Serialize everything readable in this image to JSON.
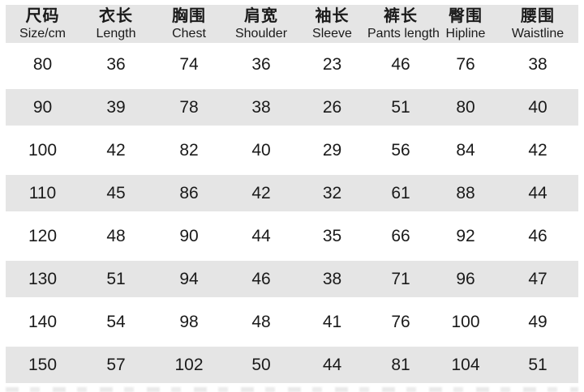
{
  "colors": {
    "band": "#e5e5e5",
    "text": "#1a1a1a",
    "background": "#ffffff"
  },
  "chart_data": {
    "type": "table",
    "title": "",
    "columns": [
      {
        "zh": "尺码",
        "en": "Size/cm"
      },
      {
        "zh": "衣长",
        "en": "Length"
      },
      {
        "zh": "胸围",
        "en": "Chest"
      },
      {
        "zh": "肩宽",
        "en": "Shoulder"
      },
      {
        "zh": "袖长",
        "en": "Sleeve"
      },
      {
        "zh": "裤长",
        "en": "Pants length"
      },
      {
        "zh": "臀围",
        "en": "Hipline"
      },
      {
        "zh": "腰围",
        "en": "Waistline"
      }
    ],
    "rows": [
      [
        80,
        36,
        74,
        36,
        23,
        46,
        76,
        38
      ],
      [
        90,
        39,
        78,
        38,
        26,
        51,
        80,
        40
      ],
      [
        100,
        42,
        82,
        40,
        29,
        56,
        84,
        42
      ],
      [
        110,
        45,
        86,
        42,
        32,
        61,
        88,
        44
      ],
      [
        120,
        48,
        90,
        44,
        35,
        66,
        92,
        46
      ],
      [
        130,
        51,
        94,
        46,
        38,
        71,
        96,
        47
      ],
      [
        140,
        54,
        98,
        48,
        41,
        76,
        100,
        49
      ],
      [
        150,
        57,
        102,
        50,
        44,
        81,
        104,
        51
      ]
    ]
  }
}
